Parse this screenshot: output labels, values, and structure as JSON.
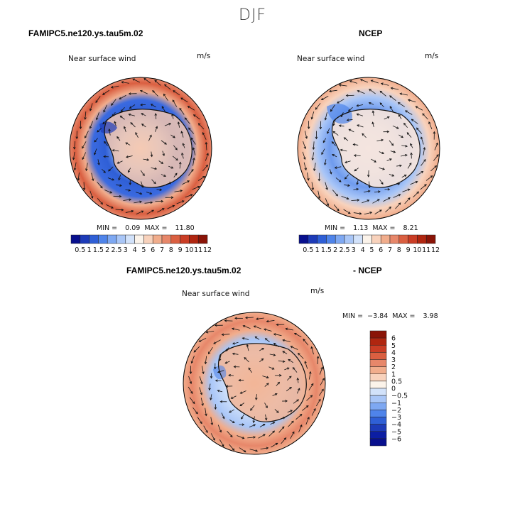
{
  "season": "DJF",
  "panels": [
    {
      "model": "FAMIPC5.ne120.ys.tau5m.02",
      "variable": "Near surface wind",
      "units": "m/s",
      "min_label": "MIN =",
      "min": "0.09",
      "max_label": "MAX =",
      "max": "11.80"
    },
    {
      "model": "NCEP",
      "variable": "Near surface wind",
      "units": "m/s",
      "min_label": "MIN =",
      "min": "1.13",
      "max_label": "MAX =",
      "max": "8.21"
    },
    {
      "model": "FAMIPC5.ne120.ys.tau5m.02",
      "model_suffix": "- NCEP",
      "variable": "Near surface wind",
      "units": "m/s",
      "min_label": "MIN =",
      "min": "−3.84",
      "max_label": "MAX =",
      "max": "3.98"
    }
  ],
  "colorbar_abs": {
    "labels": [
      "0.5",
      "1",
      "1.5",
      "2",
      "2.5",
      "3",
      "4",
      "5",
      "6",
      "7",
      "8",
      "9",
      "10",
      "11",
      "12"
    ],
    "colors": [
      "#08108e",
      "#1d3bb8",
      "#2f5fd6",
      "#4f84ea",
      "#7ea8f2",
      "#a9c6f7",
      "#d2e2fa",
      "#fbf3ea",
      "#f8d2bc",
      "#f1ad8c",
      "#e7876a",
      "#da5f41",
      "#ca3d25",
      "#b02610",
      "#8a1407"
    ]
  },
  "colorbar_diff": {
    "labels": [
      "6",
      "5",
      "4",
      "3",
      "2",
      "1",
      "0.5",
      "0",
      "−0.5",
      "−1",
      "−2",
      "−3",
      "−4",
      "−5",
      "−6"
    ],
    "colors": [
      "#8a1407",
      "#b02610",
      "#ca3d25",
      "#da5f41",
      "#e7876a",
      "#f1ad8c",
      "#f8d2bc",
      "#fbf3ea",
      "#d2e2fa",
      "#a9c6f7",
      "#7ea8f2",
      "#4f84ea",
      "#2f5fd6",
      "#1d3bb8",
      "#0c1ea3",
      "#08108e"
    ]
  },
  "chart_data": [
    {
      "type": "heatmap",
      "title": "FAMIPC5.ne120.ys.tau5m.02",
      "subtitle": "Near surface wind",
      "units": "m/s",
      "projection": "south polar stereographic with wind vectors",
      "min": 0.09,
      "max": 11.8,
      "levels": [
        0.5,
        1,
        1.5,
        2,
        2.5,
        3,
        4,
        5,
        6,
        7,
        8,
        9,
        10,
        11,
        12
      ]
    },
    {
      "type": "heatmap",
      "title": "NCEP",
      "subtitle": "Near surface wind",
      "units": "m/s",
      "projection": "south polar stereographic with wind vectors",
      "min": 1.13,
      "max": 8.21,
      "levels": [
        0.5,
        1,
        1.5,
        2,
        2.5,
        3,
        4,
        5,
        6,
        7,
        8,
        9,
        10,
        11,
        12
      ]
    },
    {
      "type": "heatmap",
      "title": "FAMIPC5.ne120.ys.tau5m.02 - NCEP",
      "subtitle": "Near surface wind",
      "units": "m/s",
      "projection": "south polar stereographic with wind vectors",
      "min": -3.84,
      "max": 3.98,
      "levels": [
        -6,
        -5,
        -4,
        -3,
        -2,
        -1,
        -0.5,
        0,
        0.5,
        1,
        2,
        3,
        4,
        5,
        6
      ]
    }
  ]
}
